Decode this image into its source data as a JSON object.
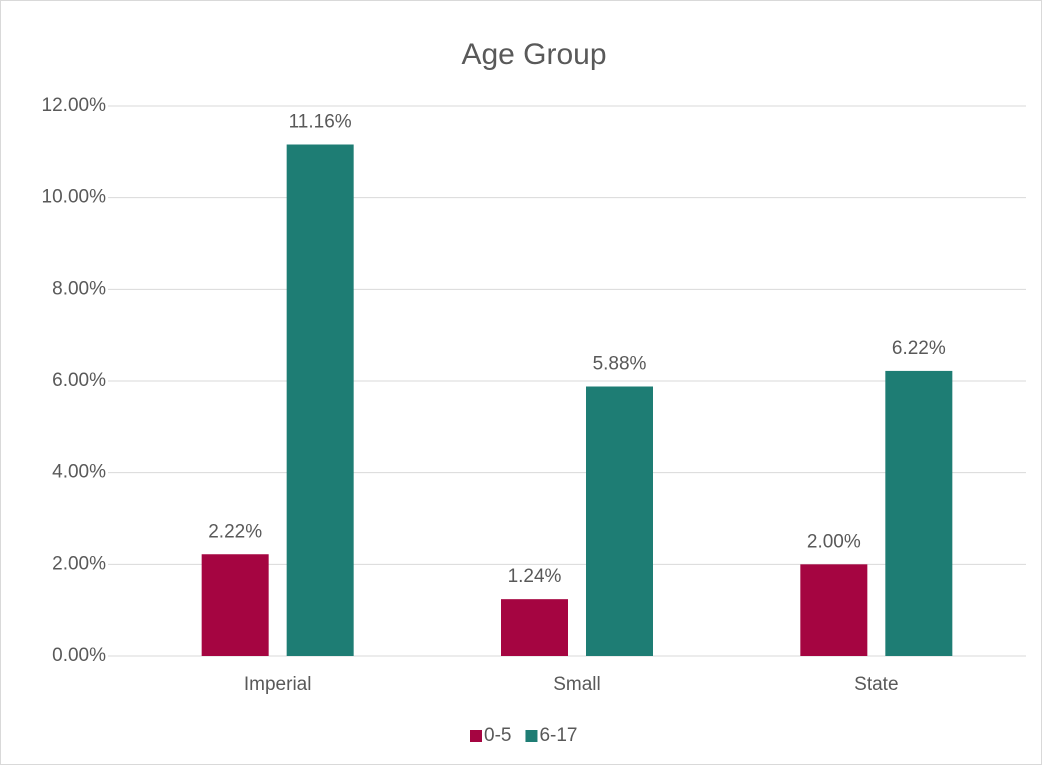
{
  "chart_data": {
    "type": "bar",
    "title": "Age Group",
    "categories": [
      "Imperial",
      "Small",
      "State"
    ],
    "series": [
      {
        "name": "0-5",
        "color": "#a50541",
        "values": [
          2.22,
          1.24,
          2.0
        ],
        "value_labels": [
          "2.22%",
          "1.24%",
          "2.00%"
        ]
      },
      {
        "name": "6-17",
        "color": "#1e7d74",
        "values": [
          11.16,
          5.88,
          6.22
        ],
        "value_labels": [
          "11.16%",
          "5.88%",
          "6.22%"
        ]
      }
    ],
    "ylim": [
      0,
      12
    ],
    "yticks": [
      {
        "value": 0,
        "label": "0.00%"
      },
      {
        "value": 2,
        "label": "2.00%"
      },
      {
        "value": 4,
        "label": "4.00%"
      },
      {
        "value": 6,
        "label": "6.00%"
      },
      {
        "value": 8,
        "label": "8.00%"
      },
      {
        "value": 10,
        "label": "10.00%"
      },
      {
        "value": 12,
        "label": "12.00%"
      }
    ],
    "grid": true,
    "legend": "bottom"
  }
}
